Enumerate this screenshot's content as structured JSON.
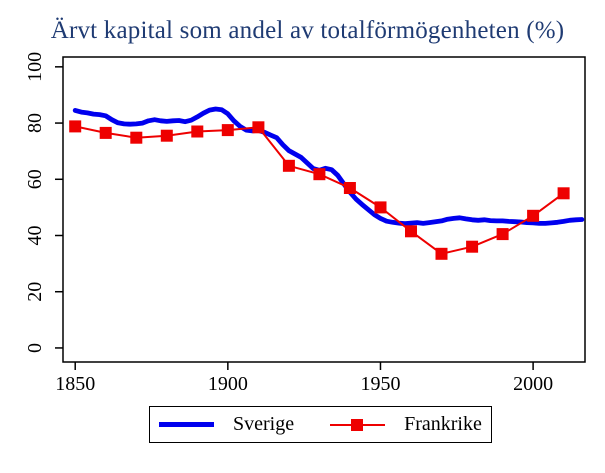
{
  "title": "Ärvt kapital som andel av totalförmögenheten (%)",
  "colors": {
    "title_text": "#1f3b73",
    "axis": "#000000",
    "sverige": "#0000ee",
    "frankrike": "#ee0000",
    "background": "#ffffff"
  },
  "legend": {
    "sverige_label": "Sverige",
    "frankrike_label": "Frankrike"
  },
  "chart_data": {
    "type": "line",
    "title": "Ärvt kapital som andel av totalförmögenheten (%)",
    "xlabel": "",
    "ylabel": "",
    "xlim": [
      1846,
      2017
    ],
    "ylim": [
      -5,
      103.5
    ],
    "x_ticks": [
      1850,
      1900,
      1950,
      2000
    ],
    "y_ticks": [
      0,
      20,
      40,
      60,
      80,
      100
    ],
    "grid": false,
    "legend_position": "bottom-center",
    "series": [
      {
        "name": "Sverige",
        "color": "#0000ee",
        "stroke_width": 4.8,
        "marker": "none",
        "x": [
          1850,
          1852,
          1854,
          1856,
          1858,
          1860,
          1862,
          1864,
          1866,
          1868,
          1870,
          1872,
          1874,
          1876,
          1878,
          1880,
          1882,
          1884,
          1886,
          1888,
          1890,
          1892,
          1894,
          1896,
          1898,
          1900,
          1902,
          1904,
          1906,
          1908,
          1910,
          1912,
          1914,
          1916,
          1918,
          1920,
          1922,
          1924,
          1926,
          1928,
          1930,
          1932,
          1934,
          1936,
          1938,
          1940,
          1942,
          1944,
          1946,
          1948,
          1950,
          1952,
          1954,
          1956,
          1958,
          1960,
          1962,
          1964,
          1966,
          1968,
          1970,
          1972,
          1974,
          1976,
          1978,
          1980,
          1982,
          1984,
          1986,
          1988,
          1990,
          1992,
          1994,
          1996,
          1998,
          2000,
          2002,
          2004,
          2006,
          2008,
          2010,
          2012,
          2014,
          2016
        ],
        "y": [
          84.5,
          83.9,
          83.6,
          83.2,
          83.0,
          82.6,
          81.2,
          80.1,
          79.7,
          79.6,
          79.7,
          80.0,
          80.8,
          81.2,
          80.8,
          80.6,
          80.8,
          80.9,
          80.5,
          81.0,
          82.2,
          83.5,
          84.6,
          85.0,
          84.7,
          83.3,
          80.8,
          78.8,
          77.5,
          77.2,
          77.4,
          76.7,
          75.7,
          74.8,
          72.3,
          70.2,
          69.0,
          67.8,
          65.8,
          63.8,
          63.2,
          63.9,
          63.4,
          61.4,
          58.4,
          55.4,
          52.9,
          51.0,
          49.2,
          47.4,
          46.1,
          45.1,
          44.7,
          44.4,
          44.2,
          44.4,
          44.6,
          44.3,
          44.6,
          44.9,
          45.2,
          45.8,
          46.1,
          46.3,
          45.9,
          45.6,
          45.4,
          45.6,
          45.3,
          45.2,
          45.2,
          45.0,
          44.9,
          44.8,
          44.6,
          44.5,
          44.3,
          44.3,
          44.5,
          44.7,
          45.0,
          45.4,
          45.6,
          45.7
        ]
      },
      {
        "name": "Frankrike",
        "color": "#ee0000",
        "stroke_width": 2,
        "marker": "square",
        "marker_size": 12,
        "x": [
          1850,
          1860,
          1870,
          1880,
          1890,
          1900,
          1910,
          1920,
          1930,
          1940,
          1950,
          1960,
          1970,
          1980,
          1990,
          2000,
          2010
        ],
        "y": [
          78.8,
          76.5,
          74.8,
          75.5,
          77.0,
          77.5,
          78.5,
          64.8,
          61.8,
          56.9,
          50.0,
          41.5,
          33.5,
          36.0,
          40.5,
          47.0,
          55.0
        ]
      }
    ]
  }
}
